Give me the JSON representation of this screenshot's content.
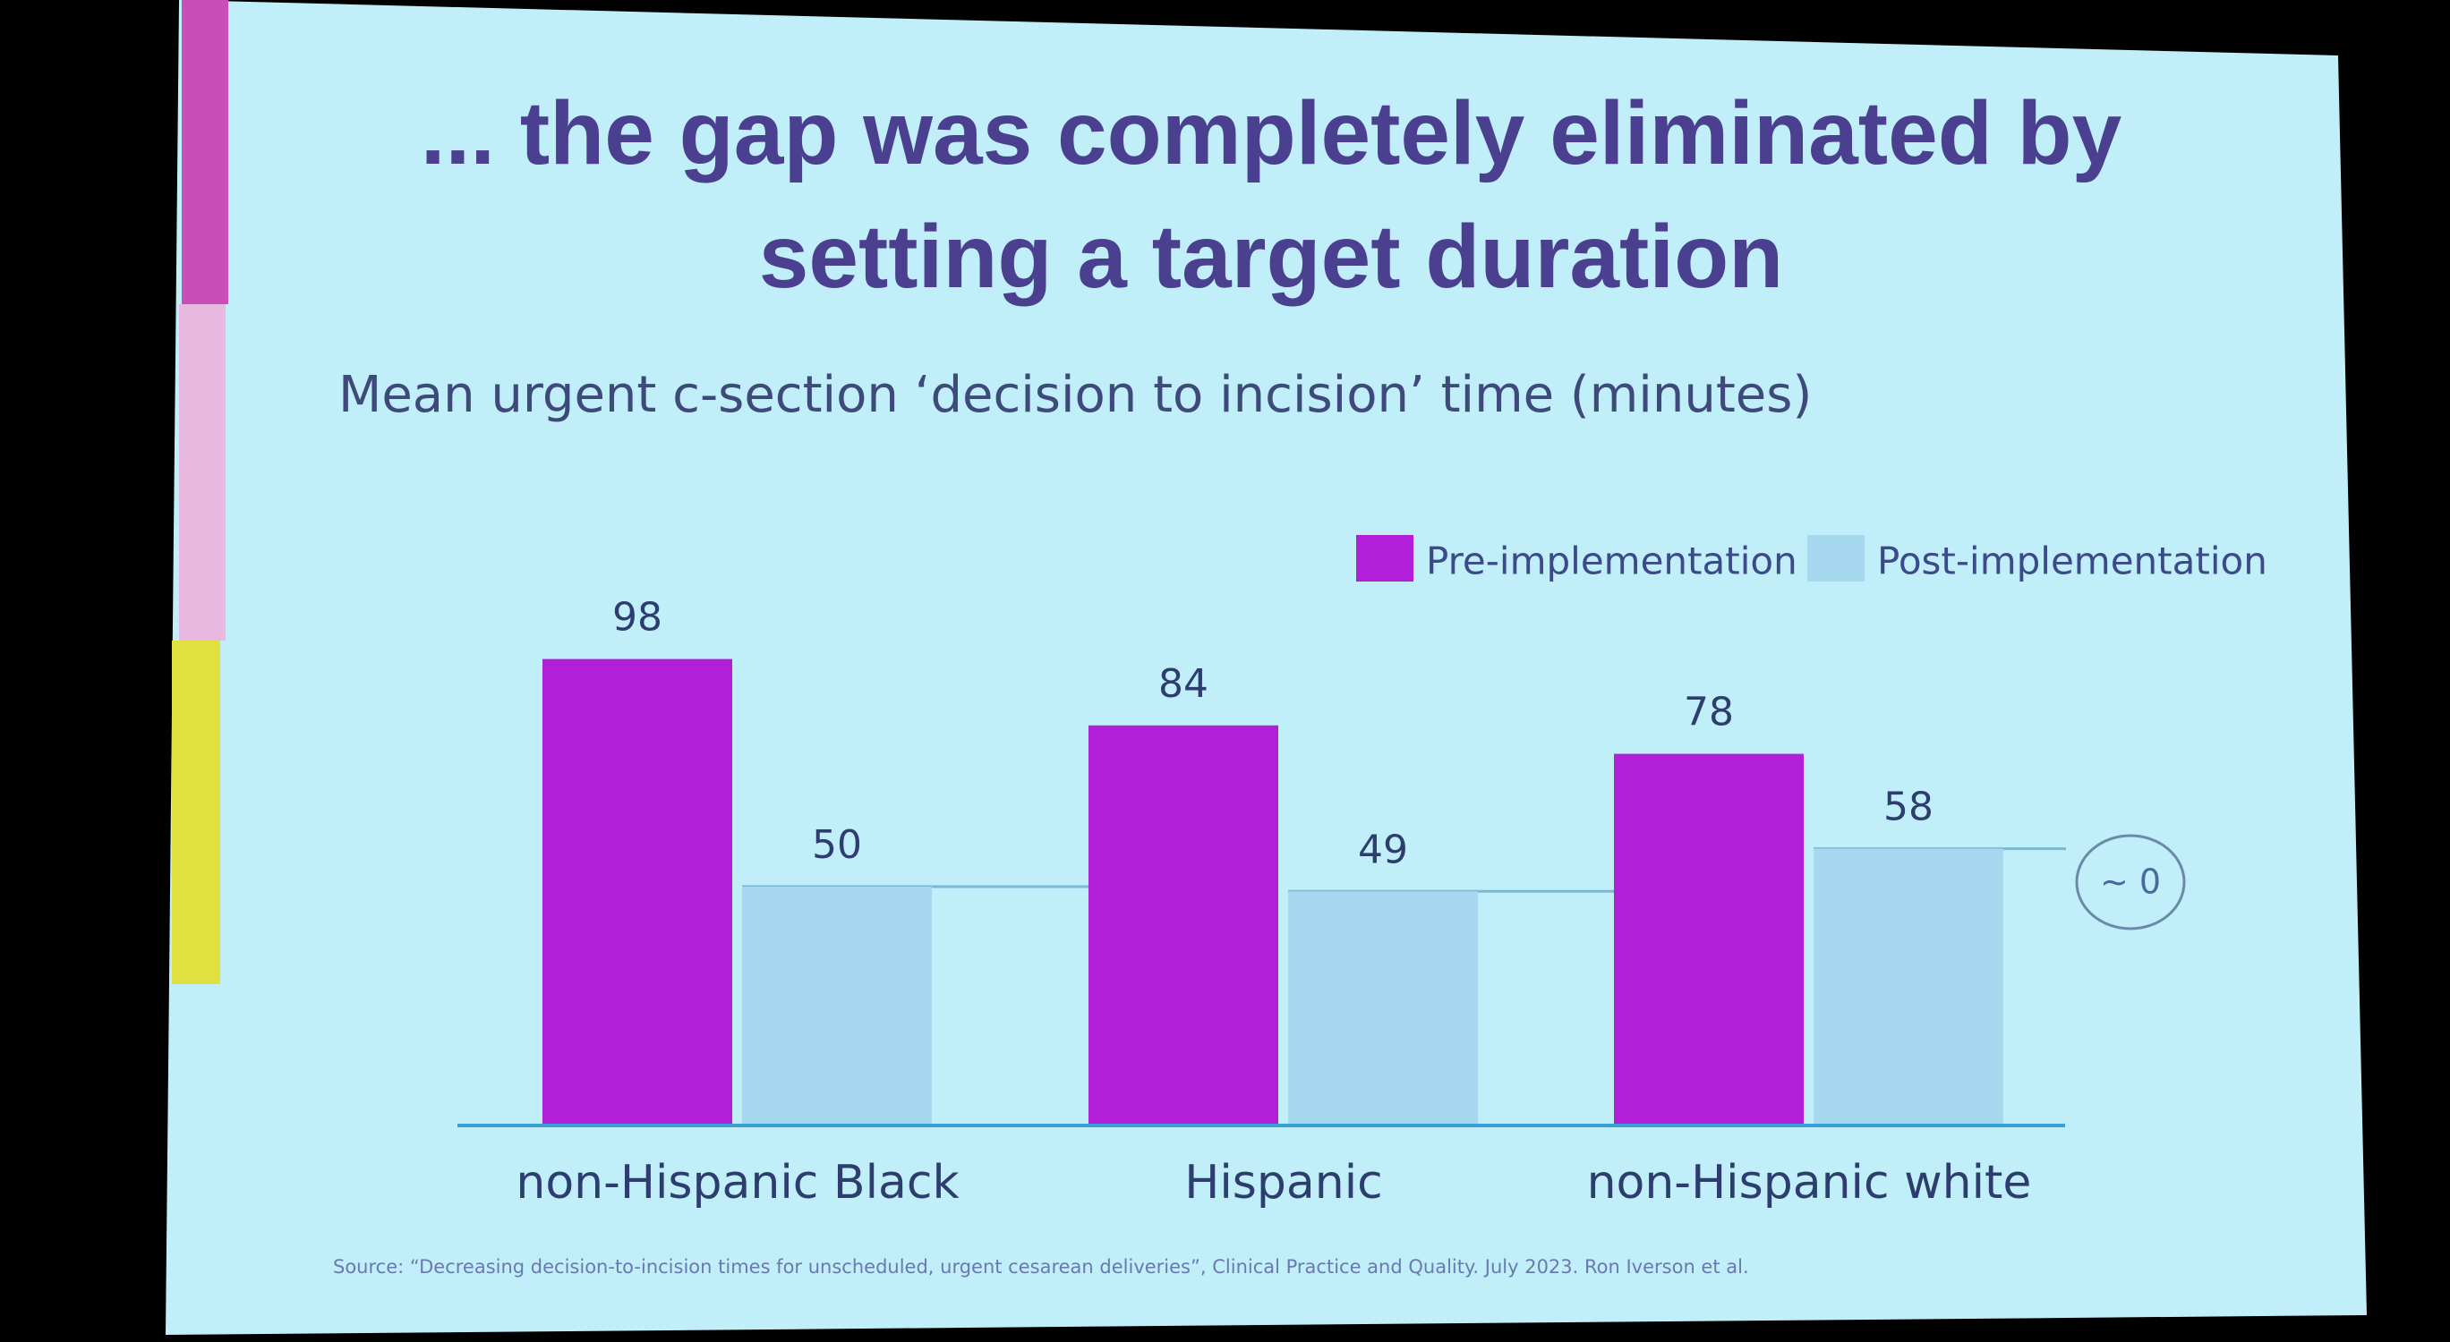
{
  "chart_data": {
    "type": "bar",
    "title": "... the gap was completely eliminated by setting a target duration",
    "subtitle": "Mean urgent c-section ‘decision to incision’ time (minutes)",
    "categories": [
      "non-Hispanic Black",
      "Hispanic",
      "non-Hispanic white"
    ],
    "series": [
      {
        "name": "Pre-implementation",
        "color": "#b21fd9",
        "values": [
          98,
          84,
          78
        ]
      },
      {
        "name": "Post-implementation",
        "color": "#a6d9ef",
        "values": [
          50,
          49,
          58
        ]
      }
    ],
    "annotation": "~ 0",
    "source": "Source: “Decreasing decision-to-incision times for unscheduled, urgent cesarean deliveries”, Clinical Practice and Quality. July 2023. Ron Iverson et al."
  }
}
